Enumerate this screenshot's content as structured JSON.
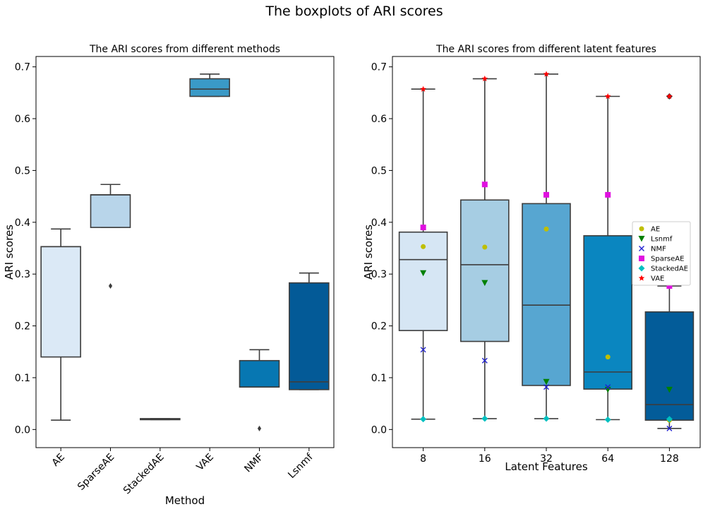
{
  "figure_title": "The boxplots of ARI scores",
  "chart_data": [
    {
      "type": "boxplot",
      "title": "The ARI scores from different methods",
      "xlabel": "Method",
      "ylabel": "ARI scores",
      "ylim": [
        -0.035,
        0.72
      ],
      "yticks": [
        "0.0",
        "0.1",
        "0.2",
        "0.3",
        "0.4",
        "0.5",
        "0.6",
        "0.7"
      ],
      "categories": [
        "AE",
        "SparseAE",
        "StackedAE",
        "VAE",
        "NMF",
        "Lsnmf"
      ],
      "colors": [
        "#dbe9f6",
        "#b8d5ea",
        "#86bcdc",
        "#3a9ac7",
        "#0777b2",
        "#035a97"
      ],
      "boxes": [
        {
          "whisker_low": 0.018,
          "q1": 0.14,
          "median": 0.353,
          "q3": 0.353,
          "whisker_high": 0.387,
          "fliers": []
        },
        {
          "whisker_low": 0.39,
          "q1": 0.39,
          "median": 0.453,
          "q3": 0.453,
          "whisker_high": 0.473,
          "fliers": [
            0.277
          ]
        },
        {
          "whisker_low": 0.019,
          "q1": 0.02,
          "median": 0.02,
          "q3": 0.021,
          "whisker_high": 0.021,
          "fliers": []
        },
        {
          "whisker_low": 0.643,
          "q1": 0.643,
          "median": 0.657,
          "q3": 0.677,
          "whisker_high": 0.686,
          "fliers": []
        },
        {
          "whisker_low": 0.082,
          "q1": 0.082,
          "median": 0.082,
          "q3": 0.133,
          "whisker_high": 0.154,
          "fliers": [
            0.002
          ]
        },
        {
          "whisker_low": 0.077,
          "q1": 0.077,
          "median": 0.092,
          "q3": 0.283,
          "whisker_high": 0.302,
          "fliers": []
        }
      ]
    },
    {
      "type": "boxplot",
      "title": "The ARI scores from different latent features",
      "xlabel": "Latent Features",
      "ylabel": "ARI scores",
      "ylim": [
        -0.035,
        0.72
      ],
      "yticks": [
        "0.0",
        "0.1",
        "0.2",
        "0.3",
        "0.4",
        "0.5",
        "0.6",
        "0.7"
      ],
      "categories": [
        "8",
        "16",
        "32",
        "64",
        "128"
      ],
      "colors": [
        "#d6e6f4",
        "#a6cde3",
        "#57a6d1",
        "#0a86c0",
        "#035c99"
      ],
      "boxes": [
        {
          "whisker_low": 0.02,
          "q1": 0.191,
          "median": 0.328,
          "q3": 0.381,
          "whisker_high": 0.657
        },
        {
          "whisker_low": 0.021,
          "q1": 0.17,
          "median": 0.318,
          "q3": 0.443,
          "whisker_high": 0.677
        },
        {
          "whisker_low": 0.021,
          "q1": 0.085,
          "median": 0.24,
          "q3": 0.436,
          "whisker_high": 0.686
        },
        {
          "whisker_low": 0.019,
          "q1": 0.078,
          "median": 0.111,
          "q3": 0.374,
          "whisker_high": 0.643
        },
        {
          "whisker_low": 0.002,
          "q1": 0.018,
          "median": 0.048,
          "q3": 0.227,
          "whisker_high": 0.277,
          "fliers": [
            0.643
          ]
        }
      ],
      "scatter_series": [
        {
          "name": "AE",
          "marker": "circle",
          "color": "#bfbf00",
          "values": [
            0.353,
            0.352,
            0.387,
            0.14,
            0.018
          ]
        },
        {
          "name": "Lsnmf",
          "marker": "triangle-down",
          "color": "#008000",
          "values": [
            0.302,
            0.283,
            0.092,
            0.077,
            0.077
          ]
        },
        {
          "name": "NMF",
          "marker": "x",
          "color": "#2020d0",
          "values": [
            0.154,
            0.133,
            0.082,
            0.082,
            0.002
          ]
        },
        {
          "name": "SparseAE",
          "marker": "square",
          "color": "#e010e0",
          "values": [
            0.39,
            0.473,
            0.453,
            0.453,
            0.277
          ]
        },
        {
          "name": "StackedAE",
          "marker": "diamond",
          "color": "#00c0c0",
          "values": [
            0.02,
            0.021,
            0.021,
            0.019,
            0.02
          ]
        },
        {
          "name": "VAE",
          "marker": "star",
          "color": "#ff0000",
          "values": [
            0.657,
            0.677,
            0.686,
            0.643,
            0.643
          ]
        }
      ],
      "legend_position": "right"
    }
  ]
}
